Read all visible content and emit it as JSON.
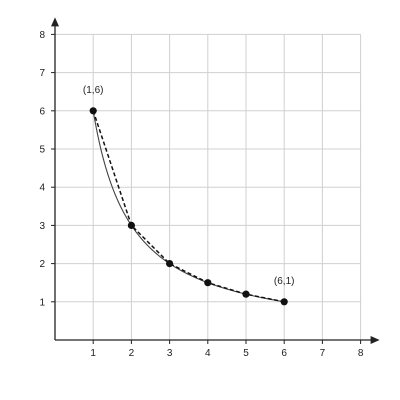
{
  "chart_data": {
    "type": "line",
    "title": "",
    "xlabel": "",
    "ylabel": "",
    "xlim": [
      0,
      8
    ],
    "ylim": [
      0,
      8
    ],
    "grid": true,
    "legend": "none",
    "x_ticks": [
      "1",
      "2",
      "3",
      "4",
      "5",
      "6",
      "7",
      "8"
    ],
    "y_ticks": [
      "1",
      "2",
      "3",
      "4",
      "5",
      "6",
      "7",
      "8"
    ],
    "curve": {
      "style": "solid",
      "formula": "y = 6/x",
      "x_range": [
        1,
        6
      ]
    },
    "series": [
      {
        "style": "dashed",
        "x": [
          1,
          2,
          3,
          4,
          5,
          6
        ],
        "y": [
          6,
          3,
          2,
          1.5,
          1.2,
          1
        ]
      }
    ],
    "annotations": [
      {
        "text": "(1,6)",
        "x": 1,
        "y": 6
      },
      {
        "text": "(6,1)",
        "x": 6,
        "y": 1
      }
    ],
    "colors": {
      "grid": "#d0d0d0",
      "axis": "#222222",
      "curve": "#444444",
      "points": "#111111"
    }
  }
}
